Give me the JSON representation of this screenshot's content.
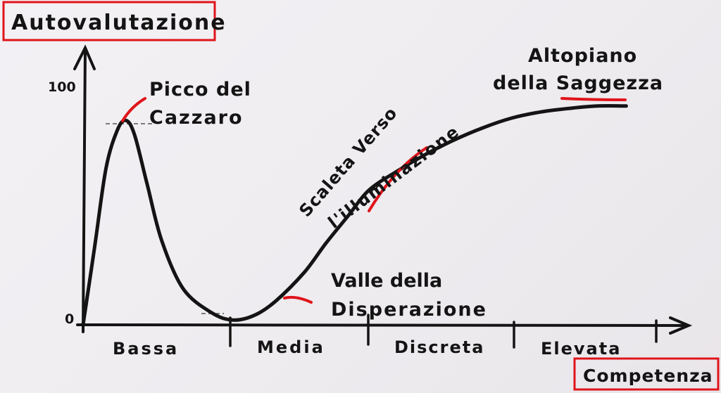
{
  "chart_data": {
    "type": "line",
    "ylabel": "Autovalutazione",
    "xlabel": "Competenza",
    "y_ticks": [
      "0",
      "100"
    ],
    "ylim": [
      0,
      100
    ],
    "categories": [
      "Bassa",
      "Media",
      "Discreta",
      "Elevata"
    ],
    "x_range": [
      0,
      4
    ],
    "series": [
      {
        "x": [
          0,
          0.08,
          0.16,
          0.24,
          0.3,
          0.36,
          0.45,
          0.55,
          0.7,
          0.9,
          1.05,
          1.2,
          1.35,
          1.55,
          1.7,
          1.85,
          2.0,
          2.2,
          2.4,
          2.6,
          2.8,
          3.0,
          3.2,
          3.4,
          3.6,
          3.8
        ],
        "y": [
          0,
          32,
          65,
          81,
          85,
          79,
          58,
          35,
          15,
          5,
          2,
          4,
          10,
          22,
          34,
          45,
          56,
          64,
          71,
          77,
          82,
          86,
          88.5,
          90,
          91,
          91
        ]
      }
    ],
    "annotations": [
      {
        "id": "peak",
        "lines": [
          "Picco del",
          "Cazzaro"
        ]
      },
      {
        "id": "valley",
        "lines": [
          "Valle della",
          "Disperazione"
        ]
      },
      {
        "id": "slope",
        "lines": [
          "Scaleta Verso",
          "l'illuminazione"
        ]
      },
      {
        "id": "plateau",
        "lines": [
          "Altopiano",
          "della Saggezza"
        ]
      }
    ],
    "grid": false,
    "colors": {
      "ink": "#141414",
      "highlight": "#e0141b",
      "paper": "#efedf0"
    }
  }
}
